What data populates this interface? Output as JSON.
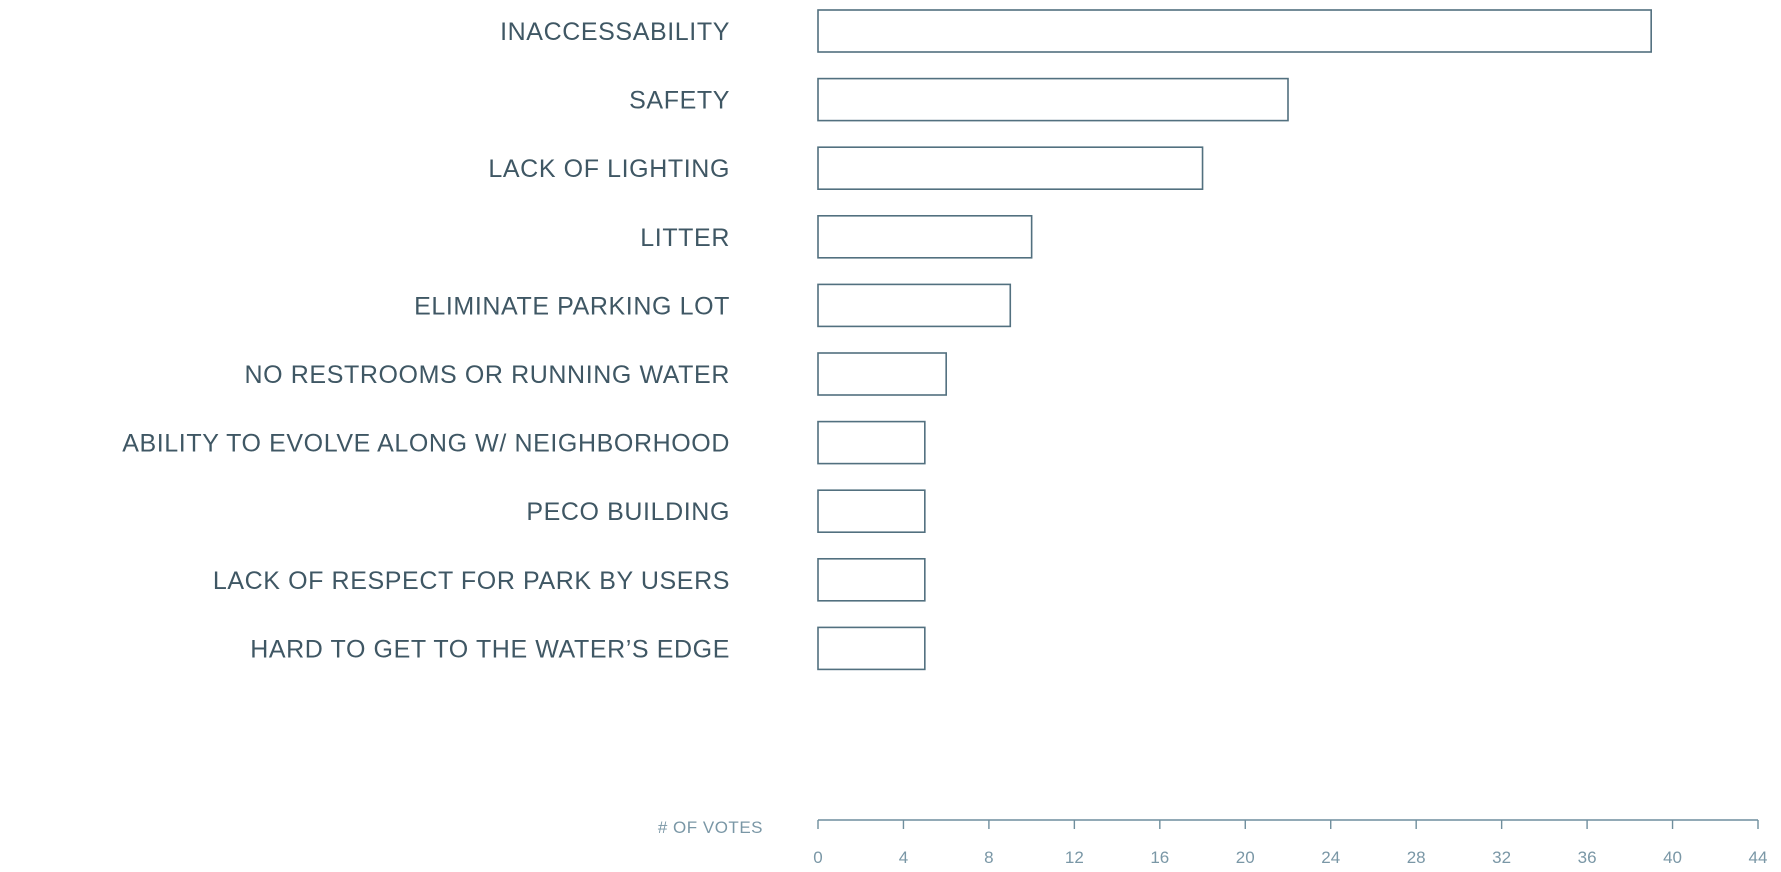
{
  "chart_data": {
    "type": "bar",
    "orientation": "horizontal",
    "categories": [
      "INACCESSABILITY",
      "SAFETY",
      "LACK OF LIGHTING",
      "LITTER",
      "ELIMINATE PARKING LOT",
      "NO RESTROOMS OR RUNNING WATER",
      "ABILITY TO EVOLVE ALONG W/ NEIGHBORHOOD",
      "PECO BUILDING",
      "LACK OF RESPECT FOR PARK BY USERS",
      "HARD TO GET TO THE WATER’S EDGE"
    ],
    "values": [
      39,
      22,
      18,
      10,
      9,
      6,
      5,
      5,
      5,
      5
    ],
    "xlabel": "# OF VOTES",
    "xlim": [
      0,
      44
    ],
    "x_ticks": [
      "0",
      "4",
      "8",
      "12",
      "16",
      "20",
      "24",
      "28",
      "32",
      "36",
      "40",
      "44"
    ],
    "grid": false,
    "legend": "none",
    "colors": {
      "bar_fill": "#ffffff",
      "bar_stroke": "#52707f",
      "label_text": "#3f5764",
      "axis": "#6f8e9d"
    }
  }
}
